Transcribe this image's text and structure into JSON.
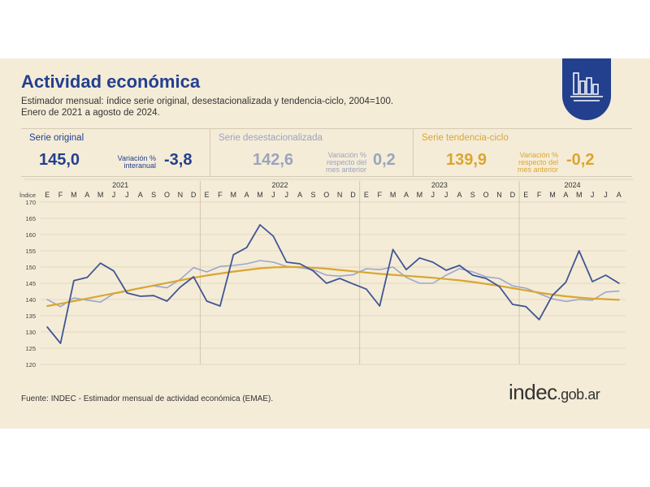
{
  "header": {
    "title": "Actividad económica",
    "subtitle_line1": "Estimador mensual: índice serie original, desestacionalizada y tendencia-ciclo, 2004=100.",
    "subtitle_line2": "Enero de 2021 a agosto de 2024."
  },
  "summary": {
    "original": {
      "label": "Serie original",
      "value": "145,0",
      "var_label_1": "Variación %",
      "var_label_2": "interanual",
      "var_value": "-3,8"
    },
    "desest": {
      "label": "Serie desestacionalizada",
      "value": "142,6",
      "var_label_1": "Variación %",
      "var_label_2": "respecto del",
      "var_label_3": "mes anterior",
      "var_value": "0,2"
    },
    "tend": {
      "label": "Serie tendencia-ciclo",
      "value": "139,9",
      "var_label_1": "Variación %",
      "var_label_2": "respecto del",
      "var_label_3": "mes anterior",
      "var_value": "-0,2"
    }
  },
  "footer": {
    "source": "Fuente: INDEC - Estimador mensual de actividad económica (EMAE).",
    "brand_main": "indec",
    "brand_suffix": ".gob.ar"
  },
  "colors": {
    "original": "#3f5694",
    "desest": "#9aa7cd",
    "tend": "#d9a632",
    "background": "#f5ecd8",
    "brand": "#23408e"
  },
  "icons": [
    "bar-chart-icon"
  ],
  "chart_data": {
    "type": "line",
    "ylabel": "Índice",
    "ylim": [
      120,
      170
    ],
    "y_ticks": [
      120,
      125,
      130,
      135,
      140,
      145,
      150,
      155,
      160,
      165,
      170
    ],
    "years": [
      "2021",
      "2022",
      "2023",
      "2024"
    ],
    "month_labels": [
      "E",
      "F",
      "M",
      "A",
      "M",
      "J",
      "J",
      "A",
      "S",
      "O",
      "N",
      "D",
      "E",
      "F",
      "M",
      "A",
      "M",
      "J",
      "J",
      "A",
      "S",
      "O",
      "N",
      "D",
      "E",
      "F",
      "M",
      "A",
      "M",
      "J",
      "J",
      "A",
      "S",
      "O",
      "N",
      "D",
      "E",
      "F",
      "M",
      "A",
      "M",
      "J",
      "J",
      "A"
    ],
    "series": [
      {
        "name": "Serie original",
        "color": "#3f5694",
        "values": [
          131.5,
          126.5,
          145.8,
          146.8,
          151.2,
          148.8,
          142.0,
          141.0,
          141.2,
          139.5,
          143.8,
          147.0,
          139.5,
          138.0,
          153.8,
          156.0,
          163.0,
          159.5,
          151.5,
          151.0,
          148.8,
          145.0,
          146.5,
          144.8,
          143.2,
          138.0,
          155.4,
          149.2,
          152.8,
          151.5,
          149.0,
          150.5,
          147.5,
          146.5,
          144.0,
          138.5,
          137.8,
          133.8,
          141.3,
          145.3,
          155.0,
          145.5,
          147.5,
          145.0
        ]
      },
      {
        "name": "Serie desestacionalizada",
        "color": "#9aa7cd",
        "values": [
          140.0,
          137.8,
          140.5,
          139.8,
          139.2,
          141.8,
          142.5,
          143.6,
          144.2,
          143.6,
          146.2,
          149.8,
          148.5,
          150.2,
          150.5,
          151.0,
          152.0,
          151.5,
          150.2,
          149.8,
          149.2,
          147.5,
          147.2,
          147.6,
          149.5,
          149.2,
          150.0,
          146.8,
          145.0,
          145.0,
          147.5,
          149.5,
          148.5,
          147.0,
          146.5,
          144.2,
          143.5,
          141.8,
          140.2,
          139.4,
          140.0,
          139.8,
          142.3,
          142.6
        ]
      },
      {
        "name": "Serie tendencia-ciclo",
        "color": "#d9a632",
        "values": [
          138.0,
          138.7,
          139.5,
          140.3,
          141.1,
          141.9,
          142.7,
          143.5,
          144.3,
          145.1,
          145.9,
          146.7,
          147.4,
          148.0,
          148.6,
          149.1,
          149.6,
          149.9,
          150.0,
          150.0,
          149.8,
          149.5,
          149.1,
          148.7,
          148.3,
          147.9,
          147.6,
          147.3,
          147.0,
          146.7,
          146.3,
          145.9,
          145.4,
          144.8,
          144.2,
          143.5,
          142.8,
          142.1,
          141.5,
          141.0,
          140.6,
          140.3,
          140.1,
          139.9
        ]
      }
    ]
  }
}
